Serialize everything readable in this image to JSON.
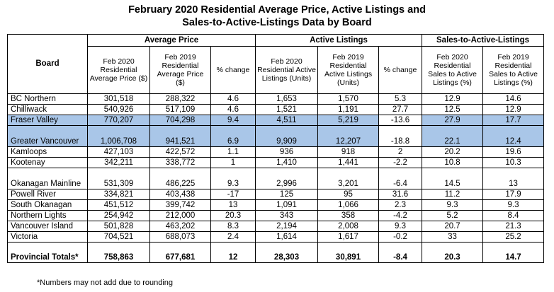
{
  "title_line1": "February 2020 Residential Average Price, Active Listings and",
  "title_line2": "Sales-to-Active-Listings Data by Board",
  "headers": {
    "board": "Board",
    "group_avg_price": "Average Price",
    "group_active": "Active Listings",
    "group_sales_active": "Sales-to-Active-Listings",
    "sub": [
      "Feb 2020 Residential Average Price ($)",
      "Feb 2019 Residential Average Price ($)",
      "% change",
      "Feb 2020 Residential Active Listings (Units)",
      "Feb 2019 Residential Active Listings (Units)",
      "% change",
      "Feb 2020 Residential Sales to Active Listings (%)",
      "Feb 2019 Residential Sales to Active Listings (%)"
    ]
  },
  "rows": [
    {
      "board": "BC Northern",
      "cells": [
        "301,518",
        "288,322",
        "4.6",
        "1,653",
        "1,570",
        "5.3",
        "12.9",
        "14.6"
      ]
    },
    {
      "board": "Chilliwack",
      "cells": [
        "540,926",
        "517,109",
        "4.6",
        "1,521",
        "1,191",
        "27.7",
        "12.5",
        "12.9"
      ]
    },
    {
      "board": "Fraser Valley",
      "cells": [
        "770,207",
        "704,298",
        "9.4",
        "4,511",
        "5,219",
        "-13.6",
        "27.9",
        "17.7"
      ]
    },
    {
      "board": "Greater Vancouver",
      "cells": [
        "1,006,708",
        "941,521",
        "6.9",
        "9,909",
        "12,207",
        "-18.8",
        "22.1",
        "12.4"
      ]
    },
    {
      "board": "Kamloops",
      "cells": [
        "427,103",
        "422,572",
        "1.1",
        "936",
        "918",
        "2",
        "20.2",
        "19.6"
      ]
    },
    {
      "board": "Kootenay",
      "cells": [
        "342,211",
        "338,772",
        "1",
        "1,410",
        "1,441",
        "-2.2",
        "10.8",
        "10.3"
      ]
    },
    {
      "board": "Okanagan Mainline",
      "cells": [
        "531,309",
        "486,225",
        "9.3",
        "2,996",
        "3,201",
        "-6.4",
        "14.5",
        "13"
      ]
    },
    {
      "board": "Powell River",
      "cells": [
        "334,821",
        "403,438",
        "-17",
        "125",
        "95",
        "31.6",
        "11.2",
        "17.9"
      ]
    },
    {
      "board": "South Okanagan",
      "cells": [
        "451,512",
        "399,742",
        "13",
        "1,091",
        "1,066",
        "2.3",
        "9.3",
        "9.3"
      ]
    },
    {
      "board": "Northern Lights",
      "cells": [
        "254,942",
        "212,000",
        "20.3",
        "343",
        "358",
        "-4.2",
        "5.2",
        "8.4"
      ]
    },
    {
      "board": "Vancouver Island",
      "cells": [
        "501,828",
        "463,202",
        "8.3",
        "2,194",
        "2,008",
        "9.3",
        "20.7",
        "21.3"
      ]
    },
    {
      "board": "Victoria",
      "cells": [
        "704,521",
        "688,073",
        "2.4",
        "1,614",
        "1,617",
        "-0.2",
        "33",
        "25.2"
      ]
    }
  ],
  "totals": {
    "board": "Provincial Totals*",
    "cells": [
      "758,863",
      "677,681",
      "12",
      "28,303",
      "30,891",
      "-8.4",
      "20.3",
      "14.7"
    ]
  },
  "footnote": "*Numbers may not add due to rounding",
  "highlight_color": "#a9c6e8"
}
